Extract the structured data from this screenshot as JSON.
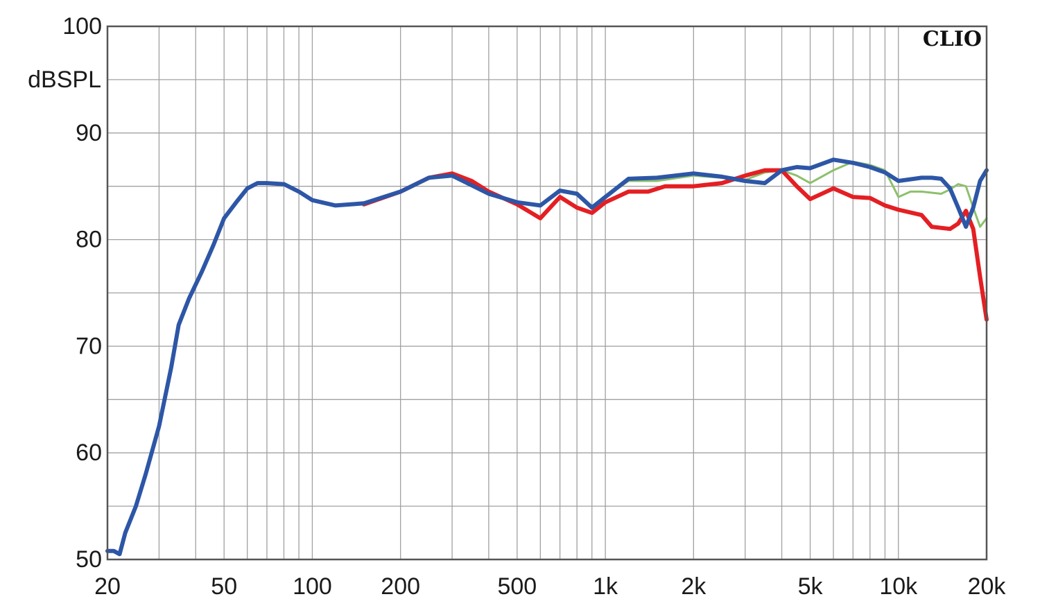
{
  "chart_data": {
    "type": "line",
    "x_scale": "log",
    "y_unit_label": "dBSPL",
    "brand": "CLIO",
    "xlim": [
      20,
      20000
    ],
    "ylim": [
      50,
      100
    ],
    "grid": true,
    "x_ticks": [
      {
        "value": 20,
        "label": "20"
      },
      {
        "value": 50,
        "label": "50"
      },
      {
        "value": 100,
        "label": "100"
      },
      {
        "value": 200,
        "label": "200"
      },
      {
        "value": 500,
        "label": "500"
      },
      {
        "value": 1000,
        "label": "1k"
      },
      {
        "value": 2000,
        "label": "2k"
      },
      {
        "value": 5000,
        "label": "5k"
      },
      {
        "value": 10000,
        "label": "10k"
      },
      {
        "value": 20000,
        "label": "20k"
      }
    ],
    "y_ticks": [
      {
        "value": 100,
        "label": "100"
      },
      {
        "value": 90,
        "label": "90"
      },
      {
        "value": 80,
        "label": "80"
      },
      {
        "value": 70,
        "label": "70"
      },
      {
        "value": 60,
        "label": "60"
      },
      {
        "value": 50,
        "label": "50"
      }
    ],
    "series": [
      {
        "color": "#8dc06b",
        "width": 3,
        "points": [
          [
            150,
            83.5
          ],
          [
            200,
            84.5
          ],
          [
            250,
            85.8
          ],
          [
            300,
            86.0
          ],
          [
            400,
            84.5
          ],
          [
            500,
            83.5
          ],
          [
            600,
            83.3
          ],
          [
            700,
            84.6
          ],
          [
            800,
            84.3
          ],
          [
            900,
            83.0
          ],
          [
            1000,
            84.0
          ],
          [
            1200,
            85.5
          ],
          [
            1500,
            85.5
          ],
          [
            2000,
            86.0
          ],
          [
            2500,
            85.8
          ],
          [
            3000,
            85.6
          ],
          [
            3500,
            86.3
          ],
          [
            4000,
            86.5
          ],
          [
            4500,
            86.0
          ],
          [
            5000,
            85.3
          ],
          [
            6000,
            86.5
          ],
          [
            7000,
            87.3
          ],
          [
            8000,
            87.0
          ],
          [
            9000,
            86.5
          ],
          [
            10000,
            84.0
          ],
          [
            11000,
            84.5
          ],
          [
            12000,
            84.5
          ],
          [
            14000,
            84.3
          ],
          [
            15000,
            84.7
          ],
          [
            16000,
            85.2
          ],
          [
            17000,
            85.0
          ],
          [
            18000,
            83.0
          ],
          [
            19000,
            81.2
          ],
          [
            20000,
            82.0
          ]
        ]
      },
      {
        "color": "#e41f23",
        "width": 6,
        "points": [
          [
            150,
            83.3
          ],
          [
            200,
            84.5
          ],
          [
            250,
            85.8
          ],
          [
            300,
            86.2
          ],
          [
            350,
            85.5
          ],
          [
            400,
            84.5
          ],
          [
            500,
            83.3
          ],
          [
            600,
            82.0
          ],
          [
            700,
            84.0
          ],
          [
            800,
            83.0
          ],
          [
            900,
            82.5
          ],
          [
            1000,
            83.5
          ],
          [
            1200,
            84.5
          ],
          [
            1400,
            84.5
          ],
          [
            1600,
            85.0
          ],
          [
            2000,
            85.0
          ],
          [
            2500,
            85.3
          ],
          [
            3000,
            86.0
          ],
          [
            3500,
            86.5
          ],
          [
            4000,
            86.5
          ],
          [
            4500,
            85.0
          ],
          [
            5000,
            83.8
          ],
          [
            6000,
            84.8
          ],
          [
            7000,
            84.0
          ],
          [
            8000,
            83.9
          ],
          [
            9000,
            83.2
          ],
          [
            10000,
            82.8
          ],
          [
            12000,
            82.3
          ],
          [
            13000,
            81.2
          ],
          [
            15000,
            81.0
          ],
          [
            16000,
            81.5
          ],
          [
            17000,
            82.7
          ],
          [
            18000,
            81.0
          ],
          [
            19000,
            76.5
          ],
          [
            20000,
            72.5
          ]
        ]
      },
      {
        "color": "#2d56a6",
        "width": 6,
        "points": [
          [
            20,
            50.8
          ],
          [
            21,
            50.8
          ],
          [
            22,
            50.5
          ],
          [
            23,
            52.5
          ],
          [
            25,
            55.0
          ],
          [
            27,
            58.0
          ],
          [
            30,
            62.5
          ],
          [
            33,
            68.0
          ],
          [
            35,
            72.0
          ],
          [
            38,
            74.5
          ],
          [
            42,
            77.0
          ],
          [
            46,
            79.5
          ],
          [
            50,
            82.0
          ],
          [
            55,
            83.5
          ],
          [
            60,
            84.8
          ],
          [
            65,
            85.3
          ],
          [
            70,
            85.3
          ],
          [
            80,
            85.2
          ],
          [
            90,
            84.5
          ],
          [
            100,
            83.7
          ],
          [
            120,
            83.2
          ],
          [
            150,
            83.4
          ],
          [
            200,
            84.5
          ],
          [
            250,
            85.8
          ],
          [
            300,
            86.0
          ],
          [
            400,
            84.3
          ],
          [
            500,
            83.5
          ],
          [
            600,
            83.2
          ],
          [
            700,
            84.6
          ],
          [
            800,
            84.3
          ],
          [
            900,
            83.0
          ],
          [
            1000,
            84.0
          ],
          [
            1200,
            85.7
          ],
          [
            1500,
            85.8
          ],
          [
            2000,
            86.2
          ],
          [
            2500,
            85.9
          ],
          [
            3000,
            85.5
          ],
          [
            3500,
            85.3
          ],
          [
            4000,
            86.5
          ],
          [
            4500,
            86.8
          ],
          [
            5000,
            86.7
          ],
          [
            6000,
            87.5
          ],
          [
            7000,
            87.2
          ],
          [
            8000,
            86.8
          ],
          [
            9000,
            86.3
          ],
          [
            10000,
            85.5
          ],
          [
            12000,
            85.8
          ],
          [
            13000,
            85.8
          ],
          [
            14000,
            85.7
          ],
          [
            15000,
            84.8
          ],
          [
            16000,
            83.0
          ],
          [
            17000,
            81.2
          ],
          [
            18000,
            83.0
          ],
          [
            19000,
            85.5
          ],
          [
            20000,
            86.5
          ]
        ]
      }
    ]
  }
}
